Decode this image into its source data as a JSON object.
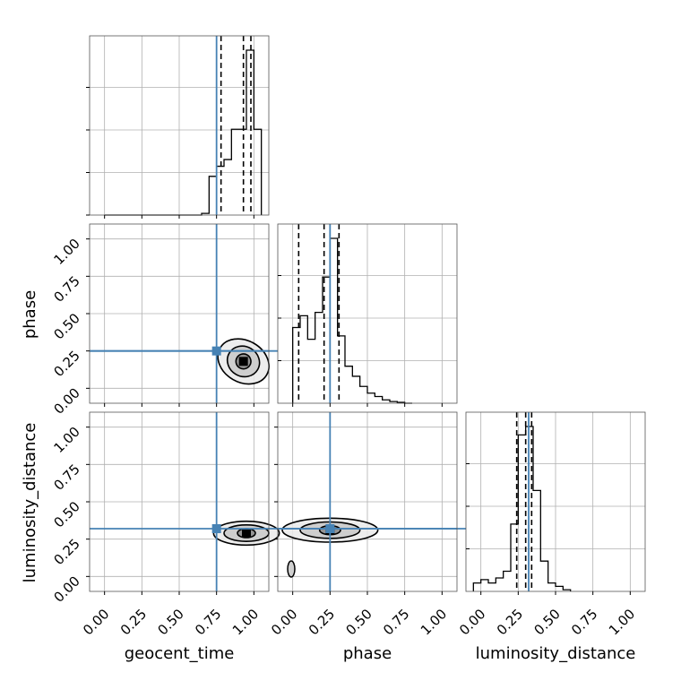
{
  "chart_data": {
    "type": "corner",
    "parameters": [
      "geocent_time",
      "phase",
      "luminosity_distance"
    ],
    "truths": {
      "geocent_time": 0.75,
      "phase": 0.25,
      "luminosity_distance": 0.32
    },
    "truth_color": "#4682b4",
    "grid": true,
    "axis_range": [
      -0.1,
      1.1
    ],
    "tick_values": [
      0.0,
      0.25,
      0.5,
      0.75,
      1.0
    ],
    "tick_labels": [
      "0.00",
      "0.25",
      "0.50",
      "0.75",
      "1.00"
    ],
    "histograms": [
      {
        "parameter": "geocent_time",
        "bin_edges": [
          0.0,
          0.05,
          0.1,
          0.15,
          0.2,
          0.25,
          0.3,
          0.35,
          0.4,
          0.45,
          0.5,
          0.55,
          0.6,
          0.65,
          0.7,
          0.75,
          0.8,
          0.85,
          0.9,
          0.95,
          1.0,
          1.05
        ],
        "counts": [
          0,
          0,
          0,
          0,
          0,
          0,
          0,
          0,
          0,
          0,
          0,
          0,
          0,
          0.01,
          0.23,
          0.29,
          0.33,
          0.51,
          0.51,
          0.98,
          0.51
        ],
        "quantile_lines": [
          0.78,
          0.93,
          0.98
        ]
      },
      {
        "parameter": "phase",
        "bin_edges": [
          0.0,
          0.05,
          0.1,
          0.15,
          0.2,
          0.25,
          0.3,
          0.35,
          0.4,
          0.45,
          0.5,
          0.55,
          0.6,
          0.65,
          0.7,
          0.75,
          0.8
        ],
        "counts": [
          0.45,
          0.52,
          0.38,
          0.54,
          0.75,
          0.98,
          0.4,
          0.22,
          0.16,
          0.1,
          0.06,
          0.04,
          0.02,
          0.01,
          0.005,
          0.0
        ],
        "quantile_lines": [
          0.04,
          0.21,
          0.31
        ]
      },
      {
        "parameter": "luminosity_distance",
        "bin_edges": [
          -0.05,
          0.0,
          0.05,
          0.1,
          0.15,
          0.2,
          0.25,
          0.3,
          0.35,
          0.4,
          0.45,
          0.5,
          0.55,
          0.6
        ],
        "counts": [
          0.05,
          0.07,
          0.05,
          0.08,
          0.12,
          0.4,
          0.93,
          0.98,
          0.6,
          0.18,
          0.05,
          0.03,
          0.01
        ],
        "quantile_lines": [
          0.24,
          0.3,
          0.34
        ]
      }
    ],
    "scatter_2d": [
      {
        "x": "geocent_time",
        "y": "phase",
        "peak": [
          0.93,
          0.18
        ],
        "point_region": {
          "x": [
            0.62,
            1.02
          ],
          "y": [
            -0.05,
            0.8
          ]
        }
      },
      {
        "x": "geocent_time",
        "y": "luminosity_distance",
        "peak": [
          0.95,
          0.29
        ],
        "point_region": {
          "x": [
            0.6,
            1.02
          ],
          "y": [
            0.0,
            0.78
          ]
        }
      },
      {
        "x": "phase",
        "y": "luminosity_distance",
        "peak": [
          0.25,
          0.31
        ],
        "point_region": {
          "x": [
            -0.02,
            0.78
          ],
          "y": [
            0.02,
            0.62
          ]
        }
      }
    ]
  }
}
